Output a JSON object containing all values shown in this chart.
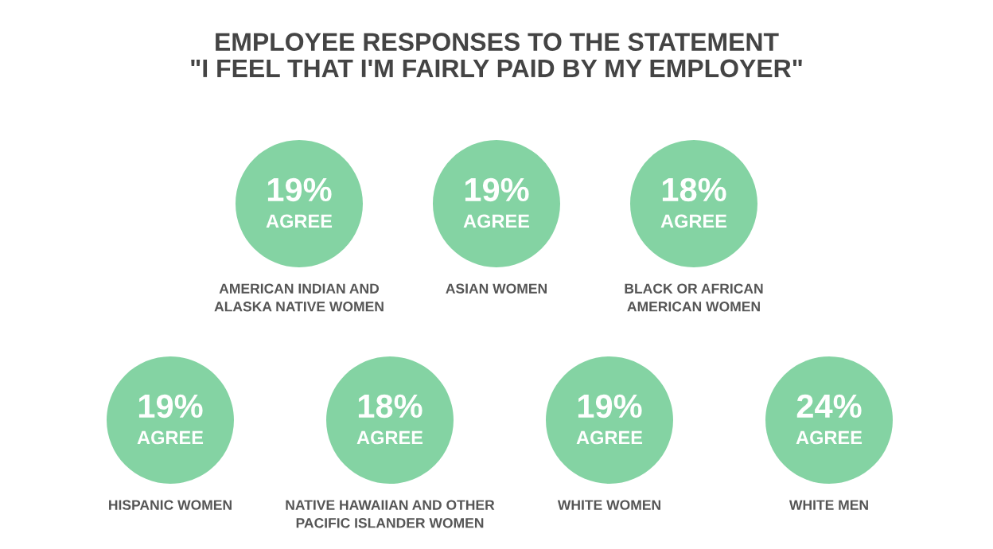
{
  "chart_data": {
    "type": "other",
    "title": "EMPLOYEE RESPONSES TO THE STATEMENT\n\"I FEEL THAT I'M FAIRLY PAID BY MY EMPLOYER\"",
    "categories": [
      "AMERICAN INDIAN AND\nALASKA NATIVE WOMEN",
      "ASIAN WOMEN",
      "BLACK OR AFRICAN\nAMERICAN WOMEN",
      "HISPANIC WOMEN",
      "NATIVE HAWAIIAN AND OTHER\nPACIFIC ISLANDER WOMEN",
      "WHITE WOMEN",
      "WHITE MEN"
    ],
    "values": [
      19,
      19,
      18,
      19,
      18,
      19,
      24
    ],
    "value_labels": [
      "19%\nAGREE",
      "19%\nAGREE",
      "18%\nAGREE",
      "19%\nAGREE",
      "18%\nAGREE",
      "19%\nAGREE",
      "24%\nAGREE"
    ],
    "color": "#84d3a3"
  }
}
